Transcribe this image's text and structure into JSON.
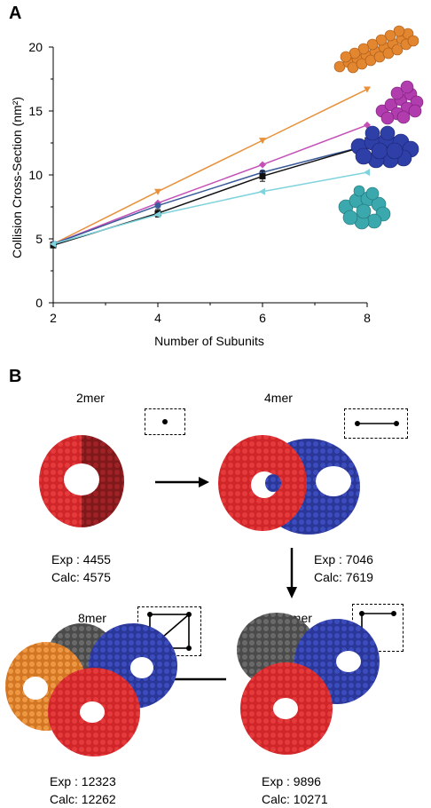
{
  "panels": {
    "a": {
      "letter": "A"
    },
    "b": {
      "letter": "B"
    }
  },
  "chart_data": {
    "type": "line",
    "xlabel": "Number of Subunits",
    "ylabel": "Collision Cross-Section (nm²)",
    "x": [
      2,
      4,
      6,
      8
    ],
    "xlim": [
      2,
      8
    ],
    "ylim": [
      0,
      20
    ],
    "xticks": [
      "2",
      "4",
      "6",
      "8"
    ],
    "yticks": [
      "0",
      "5",
      "10",
      "15",
      "20"
    ],
    "grid": false,
    "legend": "images-right",
    "series": [
      {
        "color": "#e8913a",
        "marker": "triangle-down",
        "values": [
          4.6,
          8.7,
          12.7,
          16.7
        ]
      },
      {
        "color": "#c44fb7",
        "marker": "diamond",
        "values": [
          4.6,
          7.8,
          10.8,
          13.9
        ]
      },
      {
        "color": "#3a5a9a",
        "marker": "circle",
        "values": [
          4.6,
          7.6,
          10.2,
          12.3
        ]
      },
      {
        "color": "#111111",
        "marker": "square",
        "values": [
          4.5,
          7.0,
          9.9,
          12.3
        ],
        "errors": [
          0.2,
          0.3,
          0.4,
          0.6
        ]
      },
      {
        "color": "#7fd3dc",
        "marker": "triangle-left",
        "values": [
          4.6,
          6.9,
          8.7,
          10.2
        ]
      }
    ]
  },
  "stages": {
    "s2": {
      "label": "2mer",
      "exp": "Exp : 4455",
      "calc": "Calc: 4575"
    },
    "s4": {
      "label": "4mer",
      "exp": "Exp : 7046",
      "calc": "Calc: 7619"
    },
    "s6": {
      "label": "6mer",
      "exp": "Exp : 9896",
      "calc": "Calc: 10271"
    },
    "s8": {
      "label": "8mer",
      "exp": "Exp : 12323",
      "calc": "Calc: 12262"
    }
  },
  "colors": {
    "red": "#d0262a",
    "dark_red": "#8e1c1f",
    "blue": "#2f3fa8",
    "gray": "#5a5a5a",
    "orange": "#e2862f",
    "teal": "#3aa8ad",
    "magenta": "#b03cae"
  }
}
